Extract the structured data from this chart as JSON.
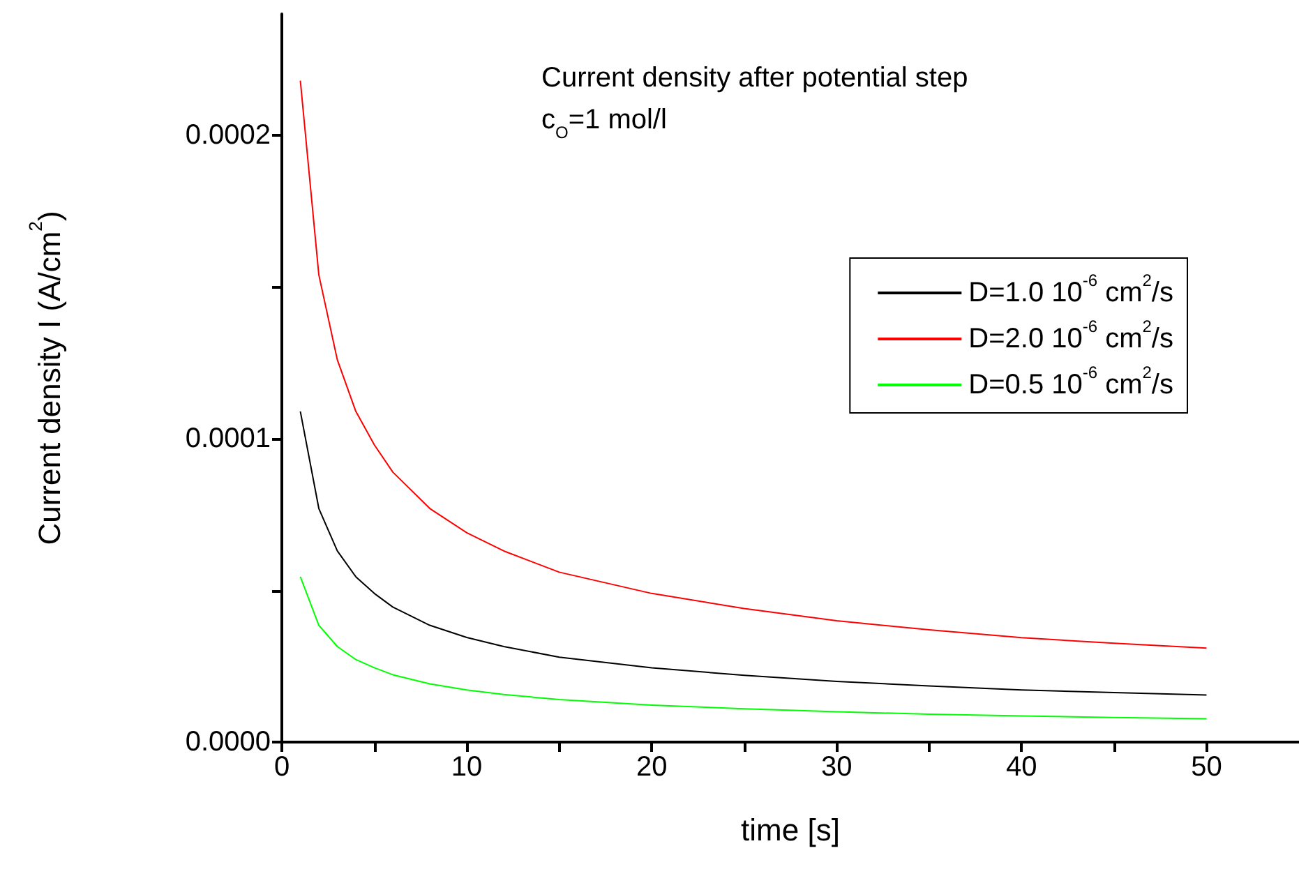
{
  "chart_data": {
    "type": "line",
    "xlabel": "time [s]",
    "ylabel": "Current density I (A/cm$^{2}$)",
    "annotations": [
      "Current density after potential step",
      "c$_{O}$=1 mol/l"
    ],
    "x": [
      1,
      2,
      3,
      4,
      5,
      6,
      8,
      10,
      12,
      15,
      20,
      25,
      30,
      35,
      40,
      45,
      50
    ],
    "series": [
      {
        "name": "D=1.0 10$^{-6}$ cm$^{2}$/s",
        "color": "#000000",
        "values": [
          0.000109,
          7.7e-05,
          6.3e-05,
          5.45e-05,
          4.9e-05,
          4.45e-05,
          3.85e-05,
          3.45e-05,
          3.15e-05,
          2.8e-05,
          2.45e-05,
          2.2e-05,
          2e-05,
          1.85e-05,
          1.72e-05,
          1.63e-05,
          1.55e-05
        ]
      },
      {
        "name": "D=2.0 10$^{-6}$ cm$^{2}$/s",
        "color": "#ff0000",
        "values": [
          0.000218,
          0.000154,
          0.000126,
          0.000109,
          9.8e-05,
          8.9e-05,
          7.7e-05,
          6.9e-05,
          6.3e-05,
          5.6e-05,
          4.9e-05,
          4.4e-05,
          4e-05,
          3.7e-05,
          3.44e-05,
          3.26e-05,
          3.1e-05
        ]
      },
      {
        "name": "D=0.5 10$^{-6}$ cm$^{2}$/s",
        "color": "#00ff00",
        "values": [
          5.45e-05,
          3.85e-05,
          3.15e-05,
          2.72e-05,
          2.45e-05,
          2.22e-05,
          1.92e-05,
          1.72e-05,
          1.57e-05,
          1.4e-05,
          1.22e-05,
          1.1e-05,
          1e-05,
          9.2e-06,
          8.6e-06,
          8.1e-06,
          7.7e-06
        ]
      }
    ],
    "xlim": [
      0,
      55
    ],
    "xticks": [
      0,
      {
        "value": 5,
        "label": null
      },
      10,
      {
        "value": 15,
        "label": null
      },
      20,
      {
        "value": 25,
        "label": null
      },
      30,
      {
        "value": 35,
        "label": null
      },
      40,
      {
        "value": 45,
        "label": null
      },
      50
    ],
    "ylim": [
      0,
      0.00024
    ],
    "yticks": [
      {
        "value": 0,
        "label": "0.0000"
      },
      {
        "value": 5e-05,
        "label": null
      },
      {
        "value": 0.0001,
        "label": "0.0001"
      },
      {
        "value": 0.00015,
        "label": null
      },
      {
        "value": 0.0002,
        "label": "0.0002"
      }
    ],
    "marker": "none",
    "grid": false,
    "legend": "top right"
  }
}
